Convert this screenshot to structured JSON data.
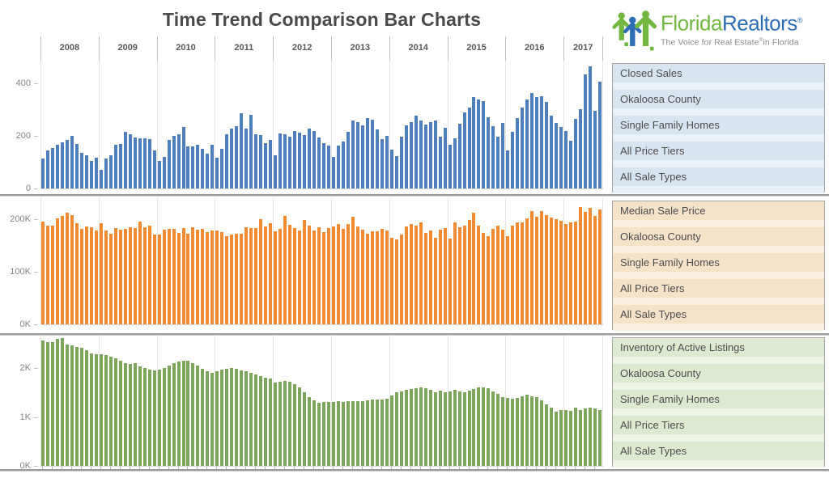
{
  "title": "Time Trend Comparison Bar Charts",
  "logo": {
    "brand_green": "Florida",
    "brand_blue": "Realtors",
    "reg": "®",
    "tagline_pre": "The Voice for Real Estate",
    "tagline_post": "in Florida",
    "green": "#72b840",
    "blue": "#2d6db5"
  },
  "years": [
    "2008",
    "2009",
    "2010",
    "2011",
    "2012",
    "2013",
    "2014",
    "2015",
    "2016",
    "2017"
  ],
  "panels": [
    {
      "id": "closed-sales",
      "bg": "#d8e5f1",
      "bg_alt": "#e9f0f7",
      "items": [
        "Closed Sales",
        "Okaloosa County",
        "Single Family Homes",
        "All Price Tiers",
        "All Sale Types"
      ]
    },
    {
      "id": "median-sale-price",
      "bg": "#f4e3c9",
      "bg_alt": "#faf0e0",
      "items": [
        "Median Sale Price",
        "Okaloosa County",
        "Single Family Homes",
        "All Price Tiers",
        "All Sale Types"
      ]
    },
    {
      "id": "inventory-active-listings",
      "bg": "#dde9d0",
      "bg_alt": "#edf4e5",
      "items": [
        "Inventory of Active Listings",
        "Okaloosa County",
        "Single Family Homes",
        "All Price Tiers",
        "All Sale Types"
      ]
    }
  ],
  "chart_data": [
    {
      "type": "bar",
      "title": "Closed Sales",
      "region": "Okaloosa County",
      "property_type": "Single Family Homes",
      "color": "#4e7fbb",
      "x_unit": "month",
      "x_start": "2008-01",
      "x_end": "2017-08",
      "ylim": [
        0,
        500
      ],
      "grid": "vertical-years-only",
      "yticks": [
        {
          "value": 0,
          "label": "0"
        },
        {
          "value": 200,
          "label": "200"
        },
        {
          "value": 400,
          "label": "400"
        }
      ],
      "values": [
        115,
        145,
        155,
        165,
        175,
        185,
        200,
        170,
        136,
        127,
        105,
        117,
        70,
        115,
        125,
        165,
        170,
        215,
        205,
        195,
        190,
        192,
        188,
        145,
        105,
        120,
        185,
        200,
        205,
        235,
        160,
        160,
        165,
        152,
        133,
        165,
        117,
        150,
        205,
        228,
        237,
        285,
        228,
        280,
        206,
        203,
        172,
        185,
        125,
        210,
        207,
        196,
        219,
        213,
        203,
        228,
        217,
        195,
        172,
        162,
        120,
        163,
        178,
        215,
        258,
        252,
        240,
        268,
        262,
        225,
        188,
        200,
        148,
        122,
        196,
        240,
        253,
        278,
        258,
        243,
        252,
        258,
        196,
        232,
        165,
        190,
        245,
        288,
        308,
        348,
        338,
        332,
        272,
        238,
        196,
        250,
        145,
        215,
        268,
        308,
        338,
        362,
        348,
        352,
        330,
        278,
        248,
        235,
        218,
        182,
        265,
        300,
        435,
        465,
        295,
        405
      ]
    },
    {
      "type": "bar",
      "title": "Median Sale Price",
      "region": "Okaloosa County",
      "property_type": "Single Family Homes",
      "color": "#f08b33",
      "x_unit": "month",
      "x_start": "2008-01",
      "x_end": "2017-08",
      "unit": "USD thousands",
      "ylim": [
        0,
        240
      ],
      "grid": "vertical-years-only",
      "yticks": [
        {
          "value": 0,
          "label": "0K"
        },
        {
          "value": 100,
          "label": "100K"
        },
        {
          "value": 200,
          "label": "200K"
        }
      ],
      "values": [
        196,
        188,
        188,
        201,
        206,
        213,
        208,
        193,
        181,
        186,
        185,
        178,
        193,
        178,
        172,
        183,
        180,
        181,
        184,
        183,
        195,
        185,
        188,
        170,
        170,
        180,
        181,
        181,
        174,
        183,
        172,
        185,
        180,
        181,
        175,
        178,
        178,
        175,
        168,
        171,
        173,
        173,
        185,
        183,
        183,
        200,
        186,
        193,
        177,
        181,
        206,
        189,
        183,
        178,
        198,
        188,
        179,
        184,
        176,
        183,
        186,
        190,
        182,
        190,
        204,
        186,
        180,
        172,
        177,
        177,
        182,
        178,
        165,
        162,
        171,
        186,
        190,
        188,
        194,
        174,
        178,
        165,
        180,
        183,
        163,
        194,
        185,
        187,
        199,
        212,
        187,
        174,
        168,
        181,
        187,
        180,
        168,
        188,
        194,
        194,
        201,
        215,
        205,
        216,
        208,
        203,
        200,
        197,
        191,
        194,
        196,
        223,
        214,
        221,
        206,
        219
      ]
    },
    {
      "type": "bar",
      "title": "Inventory of Active Listings",
      "region": "Okaloosa County",
      "property_type": "Single Family Homes",
      "color": "#7ea55c",
      "x_unit": "month",
      "x_start": "2008-01",
      "x_end": "2017-08",
      "unit": "thousands of listings",
      "ylim": [
        0,
        2.7
      ],
      "grid": "vertical-years-only",
      "yticks": [
        {
          "value": 0,
          "label": "0K"
        },
        {
          "value": 1,
          "label": "1K"
        },
        {
          "value": 2,
          "label": "2K"
        }
      ],
      "values": [
        2.56,
        2.53,
        2.54,
        2.6,
        2.61,
        2.49,
        2.46,
        2.44,
        2.41,
        2.36,
        2.3,
        2.28,
        2.29,
        2.27,
        2.24,
        2.2,
        2.16,
        2.11,
        2.08,
        2.1,
        2.04,
        2.0,
        1.97,
        1.95,
        1.97,
        2.0,
        2.06,
        2.11,
        2.14,
        2.16,
        2.15,
        2.1,
        2.05,
        1.98,
        1.93,
        1.9,
        1.94,
        1.97,
        1.99,
        2.01,
        1.98,
        1.96,
        1.93,
        1.9,
        1.87,
        1.84,
        1.81,
        1.78,
        1.71,
        1.73,
        1.74,
        1.72,
        1.68,
        1.61,
        1.5,
        1.41,
        1.34,
        1.29,
        1.31,
        1.3,
        1.31,
        1.32,
        1.31,
        1.32,
        1.33,
        1.32,
        1.33,
        1.34,
        1.35,
        1.36,
        1.35,
        1.37,
        1.44,
        1.5,
        1.52,
        1.56,
        1.58,
        1.59,
        1.61,
        1.59,
        1.56,
        1.51,
        1.54,
        1.51,
        1.53,
        1.56,
        1.53,
        1.51,
        1.54,
        1.57,
        1.61,
        1.61,
        1.59,
        1.53,
        1.47,
        1.41,
        1.39,
        1.37,
        1.39,
        1.43,
        1.45,
        1.43,
        1.41,
        1.34,
        1.26,
        1.19,
        1.11,
        1.14,
        1.15,
        1.13,
        1.19,
        1.15,
        1.17,
        1.19,
        1.17,
        1.14
      ]
    }
  ]
}
